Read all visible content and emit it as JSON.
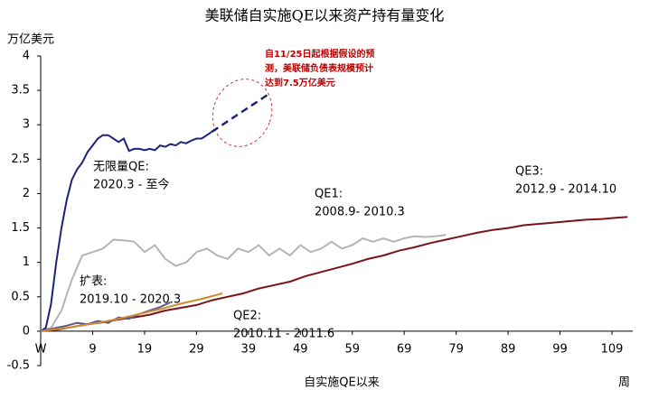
{
  "chart_data": {
    "type": "line",
    "title": "美联储自实施QE以来资产持有量变化",
    "y_label": "万亿美元",
    "x_label": "自实施QE以来",
    "x_unit": "周",
    "note": [
      "自11/25日起根据假设的预",
      "测，美联储负债表规模预计",
      "达到7.5万亿美元"
    ],
    "xlim": [
      -1,
      113
    ],
    "xticks": [
      {
        "value": -1,
        "label": "W"
      },
      9,
      19,
      29,
      39,
      49,
      59,
      69,
      79,
      89,
      99,
      109
    ],
    "ylim": [
      -0.5,
      4
    ],
    "yticks": [
      -0.5,
      0,
      0.5,
      1,
      1.5,
      2,
      2.5,
      3,
      3.5,
      4
    ],
    "series": [
      {
        "name": "QE3:",
        "label": "2012.9 - 2014.10",
        "color": "#7b1416",
        "style": "solid",
        "x": [
          -1,
          2,
          5,
          8,
          11,
          14,
          17,
          20,
          23,
          26,
          29,
          32,
          35,
          38,
          41,
          44,
          47,
          50,
          53,
          56,
          59,
          62,
          65,
          68,
          71,
          74,
          77,
          80,
          83,
          86,
          89,
          92,
          95,
          98,
          101,
          104,
          107,
          110,
          112
        ],
        "values": [
          0,
          0.02,
          0.06,
          0.1,
          0.13,
          0.17,
          0.2,
          0.24,
          0.3,
          0.34,
          0.38,
          0.45,
          0.5,
          0.55,
          0.62,
          0.67,
          0.72,
          0.8,
          0.86,
          0.92,
          0.98,
          1.05,
          1.1,
          1.17,
          1.22,
          1.28,
          1.33,
          1.38,
          1.43,
          1.47,
          1.5,
          1.54,
          1.56,
          1.58,
          1.6,
          1.62,
          1.63,
          1.65,
          1.66
        ]
      },
      {
        "name": "QE1:",
        "label": "2008.9- 2010.3",
        "color": "#b4b4b4",
        "style": "solid",
        "x": [
          -1,
          1,
          3,
          5,
          7,
          9,
          11,
          13,
          15,
          17,
          19,
          21,
          23,
          25,
          27,
          29,
          31,
          33,
          35,
          37,
          39,
          41,
          43,
          45,
          47,
          49,
          51,
          53,
          55,
          57,
          59,
          61,
          63,
          65,
          67,
          69,
          71,
          73,
          75,
          77
        ],
        "values": [
          0,
          0.05,
          0.3,
          0.75,
          1.1,
          1.15,
          1.2,
          1.33,
          1.32,
          1.3,
          1.15,
          1.25,
          1.05,
          0.95,
          1.0,
          1.15,
          1.2,
          1.1,
          1.05,
          1.2,
          1.15,
          1.25,
          1.1,
          1.2,
          1.1,
          1.25,
          1.15,
          1.2,
          1.3,
          1.2,
          1.25,
          1.35,
          1.3,
          1.35,
          1.3,
          1.35,
          1.38,
          1.37,
          1.38,
          1.4
        ]
      },
      {
        "name": "无限量QE:",
        "label": "2020.3 - 至今",
        "color": "#1c2479",
        "style": "solid",
        "x": [
          -1,
          0,
          1,
          2,
          3,
          4,
          5,
          6,
          7,
          8,
          9,
          10,
          11,
          12,
          13,
          14,
          15,
          16,
          17,
          18,
          19,
          20,
          21,
          22,
          23,
          24,
          25,
          26,
          27,
          28,
          29,
          30,
          31,
          32
        ],
        "values": [
          0,
          0.05,
          0.4,
          1.0,
          1.5,
          1.9,
          2.2,
          2.35,
          2.45,
          2.6,
          2.7,
          2.8,
          2.85,
          2.85,
          2.8,
          2.75,
          2.8,
          2.62,
          2.65,
          2.65,
          2.63,
          2.65,
          2.63,
          2.7,
          2.68,
          2.72,
          2.7,
          2.75,
          2.73,
          2.77,
          2.8,
          2.8,
          2.85,
          2.9
        ]
      },
      {
        "color": "#1c2479",
        "style": "dashed",
        "x": [
          32,
          43
        ],
        "values": [
          2.9,
          3.45
        ]
      },
      {
        "name": "扩表:",
        "label": "2019.10 - 2020.3",
        "color": "#5d5b8c",
        "style": "solid",
        "x": [
          -1,
          2,
          4,
          6,
          8,
          10,
          12,
          14,
          16,
          18,
          20,
          22,
          24
        ],
        "values": [
          0,
          0.05,
          0.08,
          0.12,
          0.1,
          0.15,
          0.12,
          0.2,
          0.18,
          0.25,
          0.3,
          0.35,
          0.42
        ]
      },
      {
        "name": "QE2:",
        "label": "2010.11 - 2011.6",
        "color": "#d08a30",
        "style": "solid",
        "x": [
          -1,
          4,
          10,
          14,
          18,
          22,
          26,
          30,
          34
        ],
        "values": [
          0,
          0.05,
          0.12,
          0.18,
          0.25,
          0.32,
          0.4,
          0.47,
          0.55
        ]
      }
    ]
  }
}
